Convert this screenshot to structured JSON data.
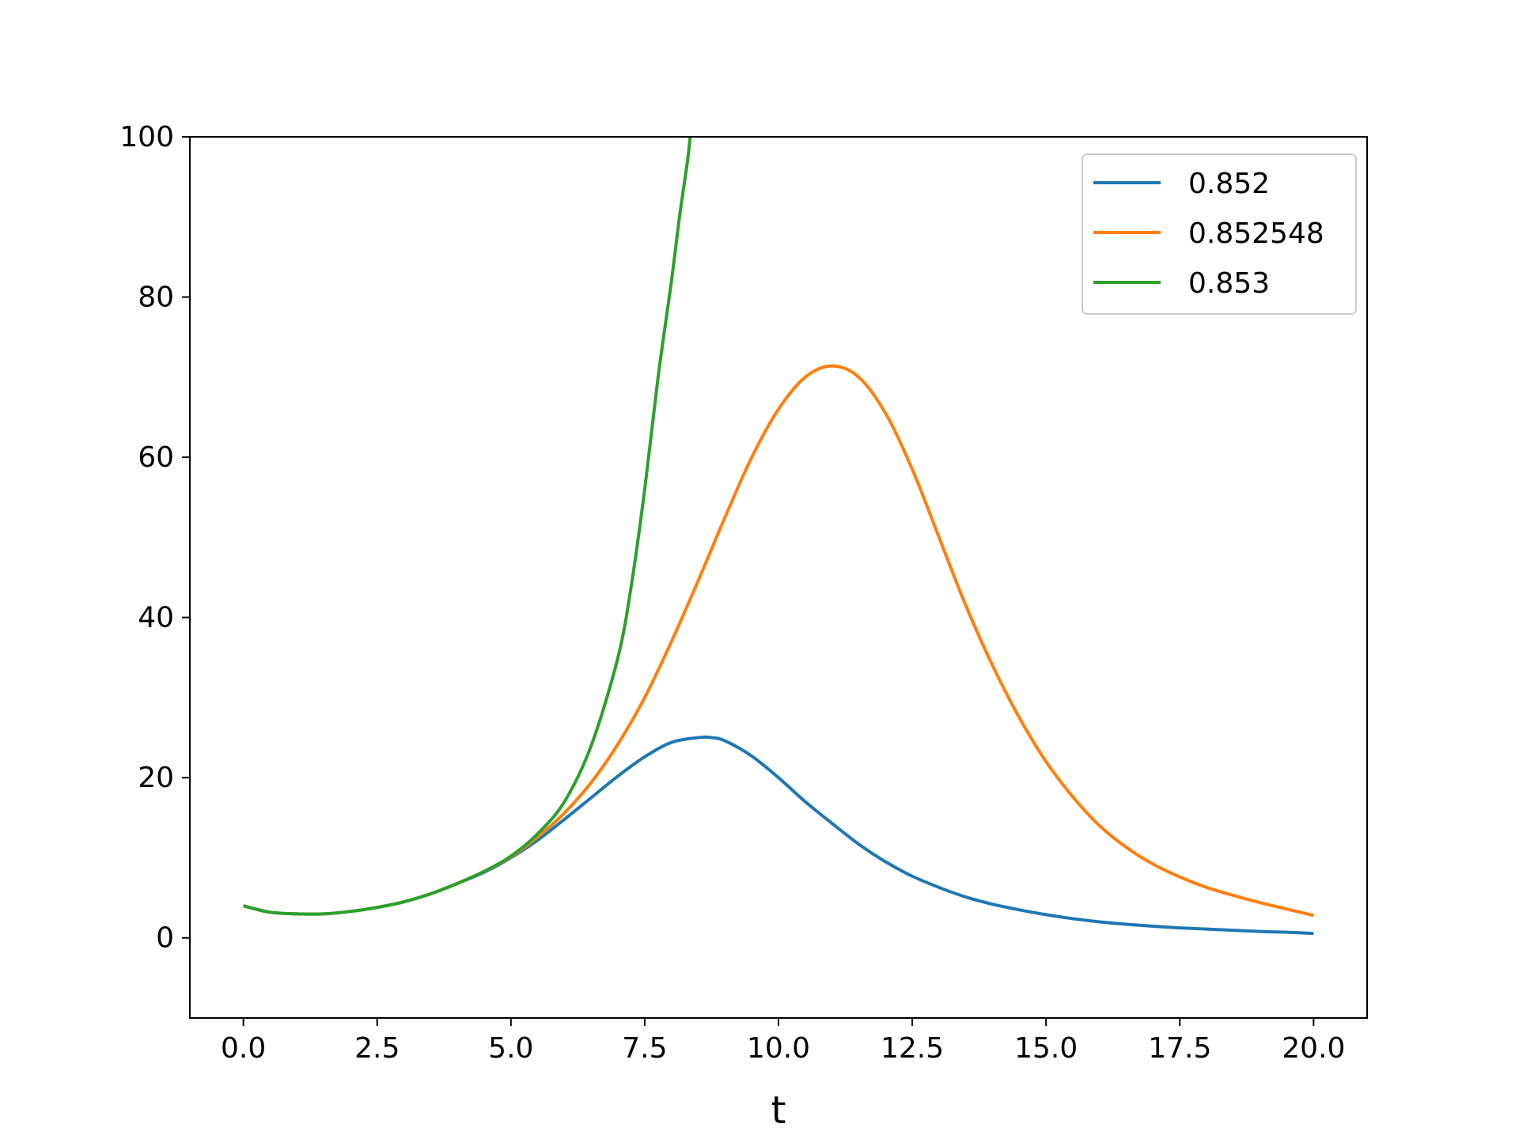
{
  "chart_data": {
    "type": "line",
    "title": "",
    "xlabel": "t",
    "ylabel": "",
    "xlim": [
      -1.0,
      21.0
    ],
    "ylim": [
      -10,
      100
    ],
    "xticks": [
      0.0,
      2.5,
      5.0,
      7.5,
      10.0,
      12.5,
      15.0,
      17.5,
      20.0
    ],
    "xtick_labels": [
      "0.0",
      "2.5",
      "5.0",
      "7.5",
      "10.0",
      "12.5",
      "15.0",
      "17.5",
      "20.0"
    ],
    "yticks": [
      0,
      20,
      40,
      60,
      80,
      100
    ],
    "ytick_labels": [
      "0",
      "20",
      "40",
      "60",
      "80",
      "100"
    ],
    "grid": false,
    "legend_position": "top-right",
    "series": [
      {
        "name": "0.852",
        "color": "#1f77b4",
        "x": [
          0,
          0.5,
          1.0,
          1.5,
          2.0,
          2.5,
          3.0,
          3.5,
          4.0,
          4.5,
          5.0,
          5.5,
          6.0,
          6.5,
          7.0,
          7.5,
          8.0,
          8.5,
          8.75,
          9.0,
          9.5,
          10.0,
          10.5,
          11.0,
          11.5,
          12.0,
          12.5,
          13.0,
          13.5,
          14.0,
          14.5,
          15.0,
          15.5,
          16.0,
          16.5,
          17.0,
          17.5,
          18.0,
          18.5,
          19.0,
          19.5,
          20.0
        ],
        "y": [
          4.0,
          3.2,
          3.0,
          3.0,
          3.3,
          3.8,
          4.5,
          5.5,
          6.8,
          8.2,
          10.0,
          12.2,
          14.8,
          17.5,
          20.2,
          22.6,
          24.4,
          25.0,
          25.0,
          24.6,
          22.7,
          20.0,
          17.0,
          14.3,
          11.7,
          9.5,
          7.7,
          6.3,
          5.1,
          4.2,
          3.5,
          2.9,
          2.4,
          2.0,
          1.7,
          1.45,
          1.25,
          1.1,
          0.95,
          0.8,
          0.7,
          0.55
        ]
      },
      {
        "name": "0.852548",
        "color": "#ff7f0e",
        "x": [
          0,
          0.5,
          1.0,
          1.5,
          2.0,
          2.5,
          3.0,
          3.5,
          4.0,
          4.5,
          5.0,
          5.5,
          6.0,
          6.5,
          7.0,
          7.5,
          8.0,
          8.5,
          9.0,
          9.5,
          10.0,
          10.5,
          11.0,
          11.5,
          12.0,
          12.5,
          13.0,
          13.5,
          14.0,
          14.5,
          15.0,
          15.5,
          16.0,
          16.5,
          17.0,
          17.5,
          18.0,
          18.5,
          19.0,
          19.5,
          20.0
        ],
        "y": [
          4.0,
          3.2,
          3.0,
          3.0,
          3.3,
          3.8,
          4.5,
          5.5,
          6.8,
          8.3,
          10.1,
          12.6,
          15.6,
          19.4,
          24.2,
          30.0,
          37.0,
          44.6,
          52.5,
          60.0,
          66.0,
          70.0,
          71.4,
          70.0,
          65.5,
          58.5,
          50.0,
          41.5,
          34.0,
          27.5,
          22.0,
          17.6,
          14.0,
          11.3,
          9.2,
          7.6,
          6.3,
          5.3,
          4.4,
          3.6,
          2.8
        ]
      },
      {
        "name": "0.853",
        "color": "#2ca02c",
        "x": [
          0,
          0.5,
          1.0,
          1.5,
          2.0,
          2.5,
          3.0,
          3.5,
          4.0,
          4.5,
          5.0,
          5.5,
          6.0,
          6.5,
          7.0,
          7.25,
          7.5,
          7.75,
          8.0,
          8.15,
          8.3,
          8.35
        ],
        "y": [
          4.0,
          3.2,
          3.0,
          3.0,
          3.3,
          3.8,
          4.5,
          5.5,
          6.8,
          8.3,
          10.2,
          13.0,
          17.0,
          24.0,
          35.0,
          44.0,
          56.0,
          70.0,
          82.0,
          90.0,
          97.0,
          100.0
        ]
      }
    ]
  }
}
